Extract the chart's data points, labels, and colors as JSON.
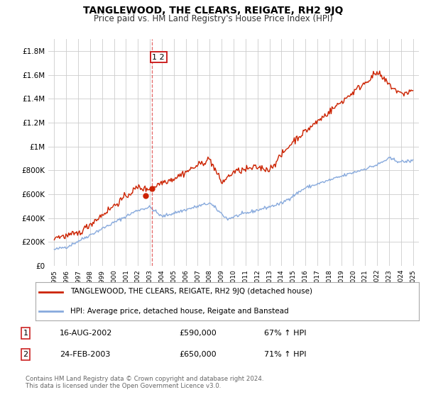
{
  "title": "TANGLEWOOD, THE CLEARS, REIGATE, RH2 9JQ",
  "subtitle": "Price paid vs. HM Land Registry's House Price Index (HPI)",
  "legend_line1": "TANGLEWOOD, THE CLEARS, REIGATE, RH2 9JQ (detached house)",
  "legend_line2": "HPI: Average price, detached house, Reigate and Banstead",
  "red_color": "#cc2200",
  "blue_color": "#88aadd",
  "footnote": "Contains HM Land Registry data © Crown copyright and database right 2024.\nThis data is licensed under the Open Government Licence v3.0.",
  "table": [
    {
      "num": "1",
      "date": "16-AUG-2002",
      "price": "£590,000",
      "hpi": "67% ↑ HPI"
    },
    {
      "num": "2",
      "date": "24-FEB-2003",
      "price": "£650,000",
      "hpi": "71% ↑ HPI"
    }
  ],
  "point1": {
    "year": 2002.62,
    "value": 590000
  },
  "point2": {
    "year": 2003.15,
    "value": 650000
  },
  "vline_x": 2003.15,
  "ylim": [
    0,
    1900000
  ],
  "xlim": [
    1994.5,
    2025.5
  ],
  "yticks": [
    0,
    200000,
    400000,
    600000,
    800000,
    1000000,
    1200000,
    1400000,
    1600000,
    1800000
  ],
  "ylabels": [
    "£0",
    "£200K",
    "£400K",
    "£600K",
    "£800K",
    "£1M",
    "£1.2M",
    "£1.4M",
    "£1.6M",
    "£1.8M"
  ]
}
